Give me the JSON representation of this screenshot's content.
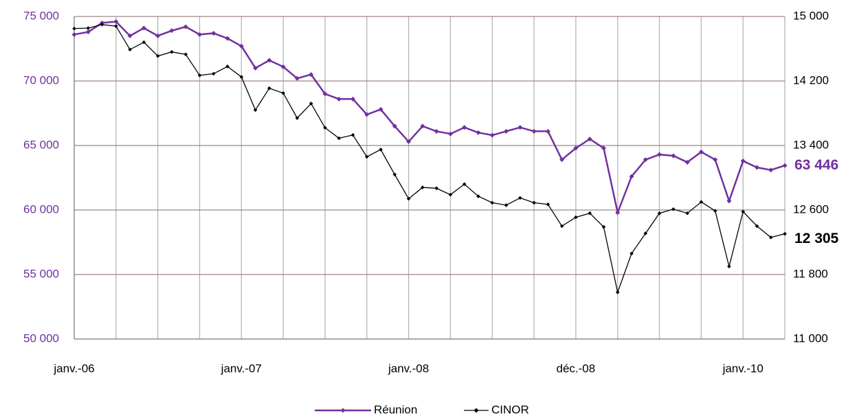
{
  "chart_data": {
    "type": "line",
    "categories": [
      "janv.-06",
      null,
      null,
      null,
      null,
      null,
      null,
      null,
      null,
      null,
      null,
      null,
      "janv.-07",
      null,
      null,
      null,
      null,
      null,
      null,
      null,
      null,
      null,
      null,
      null,
      "janv.-08",
      null,
      null,
      null,
      null,
      null,
      null,
      null,
      null,
      null,
      null,
      null,
      "déc.-08",
      null,
      null,
      null,
      null,
      null,
      null,
      null,
      null,
      null,
      null,
      null,
      "janv.-10",
      null,
      null,
      null
    ],
    "series": [
      {
        "name": "Réunion",
        "color": "#7030a0",
        "values": [
          73600,
          73800,
          74500,
          74600,
          73500,
          74100,
          73500,
          73900,
          74200,
          73600,
          73700,
          73300,
          72700,
          71000,
          71600,
          71100,
          70200,
          70500,
          69000,
          68600,
          68600,
          67400,
          67800,
          66500,
          65300,
          66500,
          66100,
          65900,
          66400,
          66000,
          65800,
          66100,
          66400,
          66100,
          66100,
          63900,
          64800,
          65500,
          64800,
          59800,
          62600,
          63900,
          64300,
          64200,
          63700,
          64500,
          63900,
          60700,
          63800,
          63300,
          63100,
          63446
        ],
        "value_labels": [
          null,
          null,
          null,
          null,
          null,
          null,
          null,
          null,
          null,
          null,
          null,
          null,
          null,
          null,
          null,
          null,
          null,
          null,
          null,
          null,
          null,
          null,
          null,
          null,
          null,
          null,
          null,
          null,
          null,
          null,
          null,
          null,
          null,
          null,
          null,
          null,
          null,
          null,
          null,
          null,
          null,
          null,
          null,
          null,
          null,
          null,
          null,
          null,
          null,
          null,
          null,
          "63 446"
        ]
      },
      {
        "name": "CINOR",
        "color": "#000000",
        "axis": "y2",
        "values": [
          14850,
          14855,
          14900,
          14880,
          14590,
          14680,
          14510,
          14560,
          14530,
          14270,
          14290,
          14380,
          14250,
          13840,
          14110,
          14050,
          13740,
          13920,
          13620,
          13490,
          13530,
          13260,
          13350,
          13040,
          12740,
          12880,
          12870,
          12790,
          12920,
          12770,
          12690,
          12660,
          12750,
          12690,
          12670,
          12400,
          12510,
          12560,
          12390,
          11580,
          12060,
          12310,
          12560,
          12610,
          12560,
          12700,
          12590,
          11900,
          12580,
          12400,
          12260,
          12305
        ],
        "value_labels": [
          null,
          null,
          null,
          null,
          null,
          null,
          null,
          null,
          null,
          null,
          null,
          null,
          null,
          null,
          null,
          null,
          null,
          null,
          null,
          null,
          null,
          null,
          null,
          null,
          null,
          null,
          null,
          null,
          null,
          null,
          null,
          null,
          null,
          null,
          null,
          null,
          null,
          null,
          null,
          null,
          null,
          null,
          null,
          null,
          null,
          null,
          null,
          null,
          null,
          null,
          null,
          "12 305"
        ]
      }
    ],
    "ylim": [
      50000,
      75000
    ],
    "yticks": [
      {
        "value": 50000,
        "label": "50 000"
      },
      {
        "value": 55000,
        "label": "55 000"
      },
      {
        "value": 60000,
        "label": "60 000"
      },
      {
        "value": 65000,
        "label": "65 000"
      },
      {
        "value": 70000,
        "label": "70 000"
      },
      {
        "value": 75000,
        "label": "75 000"
      }
    ],
    "y2lim": [
      11000,
      15000
    ],
    "y2ticks": [
      {
        "value": 11000,
        "label": "11 000"
      },
      {
        "value": 11800,
        "label": "11 800"
      },
      {
        "value": 12600,
        "label": "12 600"
      },
      {
        "value": 13400,
        "label": "13 400"
      },
      {
        "value": 14200,
        "label": "14 200"
      },
      {
        "value": 15000,
        "label": "15 000"
      }
    ],
    "grid": true,
    "legend": "bottom"
  }
}
